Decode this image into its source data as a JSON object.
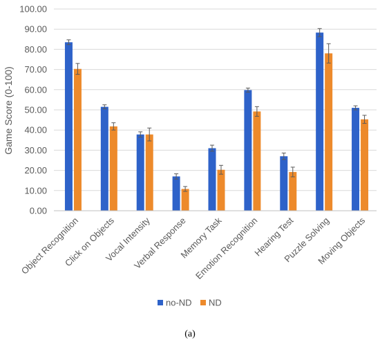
{
  "chart_data": {
    "type": "bar",
    "ylabel": "Game Score (0-100)",
    "ylim": [
      0,
      100
    ],
    "ytick_step": 10,
    "ytick_labels": [
      "0.00",
      "10.00",
      "20.00",
      "30.00",
      "40.00",
      "50.00",
      "60.00",
      "70.00",
      "80.00",
      "90.00",
      "100.00"
    ],
    "grid": true,
    "legend_position": "bottom",
    "categories": [
      "Object Recognition",
      "Click on Objects",
      "Vocal Intensity",
      "Verbal Response",
      "Memory Task",
      "Emotion Recognition",
      "Hearing Test",
      "Puzzle Solving",
      "Moving Objects"
    ],
    "series": [
      {
        "name": "no-ND",
        "color": "#2e62c9",
        "values": [
          83.5,
          51.5,
          37.8,
          17.0,
          31.0,
          59.8,
          27.0,
          88.3,
          51.0
        ],
        "errors": [
          1.2,
          1.0,
          1.3,
          1.3,
          1.5,
          1.0,
          1.6,
          2.0,
          1.0
        ]
      },
      {
        "name": "ND",
        "color": "#ed8a2b",
        "values": [
          70.3,
          41.8,
          37.8,
          10.8,
          20.3,
          49.2,
          19.2,
          78.0,
          45.3
        ],
        "errors": [
          2.7,
          1.8,
          3.2,
          1.2,
          2.2,
          2.4,
          2.4,
          4.8,
          2.0
        ]
      }
    ],
    "error_bar_color": "#595959",
    "grid_color": "#d9d9d9",
    "axis_color": "#bfbfbf"
  },
  "caption": "(a)"
}
